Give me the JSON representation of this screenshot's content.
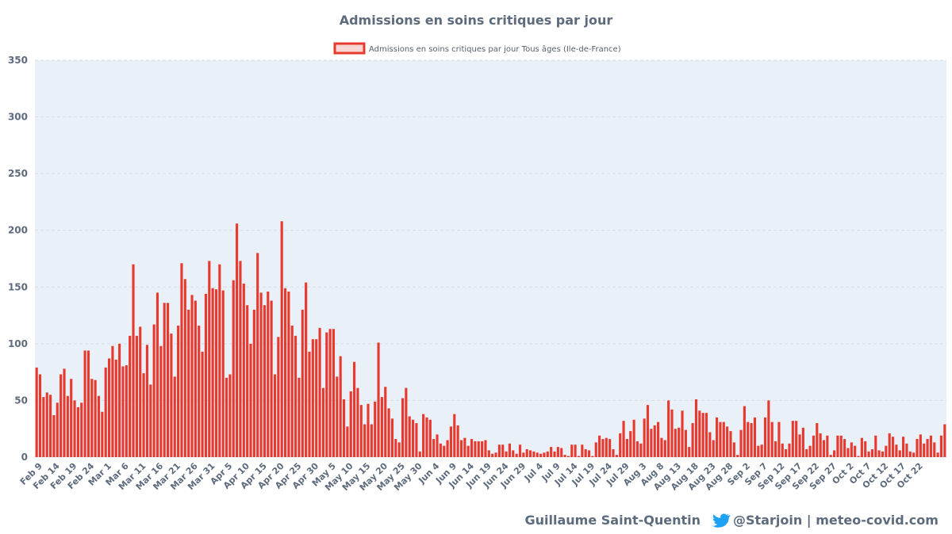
{
  "colors": {
    "bar": "#e8392e",
    "legend_fill": "#f8d7d3",
    "legend_stroke": "#e8392e",
    "plot_background": "#eaf0f8",
    "text": "#5d6b7d",
    "twitter": "#1da1f2"
  },
  "footer": {
    "author": "Guillaume Saint-Quentin",
    "handle": "@Starjoin | meteo-covid.com",
    "icon": "twitter-bird-icon"
  },
  "chart_data": {
    "type": "bar",
    "title": "Admissions en soins critiques par jour",
    "xlabel": "",
    "ylabel": "",
    "ylim": [
      0,
      350
    ],
    "yticks": [
      0,
      50,
      100,
      150,
      200,
      250,
      300,
      350
    ],
    "grid": true,
    "legend_position": "top-center",
    "series": [
      {
        "name": "Admissions en soins critiques par jour Tous âges (Ile-de-France)",
        "values": [
          79,
          73,
          53,
          57,
          55,
          37,
          48,
          73,
          78,
          54,
          69,
          50,
          44,
          48,
          94,
          94,
          69,
          68,
          54,
          40,
          79,
          87,
          98,
          86,
          100,
          80,
          81,
          107,
          170,
          107,
          115,
          74,
          99,
          64,
          117,
          145,
          98,
          136,
          136,
          109,
          71,
          116,
          171,
          157,
          130,
          143,
          138,
          116,
          93,
          144,
          173,
          149,
          148,
          170,
          147,
          70,
          73,
          156,
          206,
          173,
          153,
          134,
          100,
          130,
          180,
          145,
          134,
          146,
          138,
          73,
          106,
          208,
          149,
          146,
          116,
          107,
          70,
          130,
          154,
          93,
          104,
          104,
          114,
          61,
          110,
          113,
          113,
          71,
          89,
          51,
          27,
          58,
          84,
          61,
          46,
          29,
          47,
          29,
          49,
          101,
          53,
          62,
          43,
          34,
          16,
          13,
          52,
          61,
          36,
          33,
          30,
          5,
          38,
          35,
          33,
          16,
          20,
          12,
          10,
          15,
          27,
          38,
          28,
          15,
          17,
          10,
          16,
          14,
          14,
          14,
          15,
          6,
          3,
          4,
          11,
          11,
          5,
          12,
          6,
          3,
          11,
          4,
          7,
          6,
          5,
          4,
          3,
          4,
          5,
          9,
          5,
          9,
          8,
          2,
          1,
          11,
          11,
          1,
          11,
          7,
          6,
          1,
          13,
          19,
          16,
          17,
          16,
          7,
          2,
          21,
          32,
          16,
          23,
          33,
          14,
          12,
          34,
          46,
          25,
          28,
          31,
          17,
          15,
          50,
          42,
          25,
          26,
          41,
          24,
          9,
          30,
          51,
          41,
          39,
          39,
          22,
          15,
          35,
          31,
          31,
          27,
          23,
          13,
          2,
          24,
          45,
          31,
          30,
          35,
          10,
          11,
          35,
          50,
          31,
          14,
          31,
          12,
          7,
          12,
          32,
          32,
          20,
          26,
          7,
          10,
          19,
          30,
          21,
          15,
          19,
          2,
          6,
          19,
          19,
          16,
          8,
          13,
          10,
          1,
          17,
          14,
          5,
          7,
          19,
          6,
          5,
          10,
          21,
          18,
          11,
          6,
          18,
          12,
          5,
          4,
          16,
          20,
          12,
          16,
          19,
          13,
          4,
          19,
          29
        ]
      }
    ],
    "x_tick_labels": [
      "Feb 9",
      "Feb 14",
      "Feb 19",
      "Feb 24",
      "Mar 1",
      "Mar 6",
      "Mar 11",
      "Mar 16",
      "Mar 21",
      "Mar 26",
      "Mar 31",
      "Apr 5",
      "Apr 10",
      "Apr 15",
      "Apr 20",
      "Apr 25",
      "Apr 30",
      "May 5",
      "May 10",
      "May 15",
      "May 20",
      "May 25",
      "May 30",
      "Jun 4",
      "Jun 9",
      "Jun 14",
      "Jun 19",
      "Jun 24",
      "Jun 29",
      "Jul 4",
      "Jul 9",
      "Jul 14",
      "Jul 19",
      "Jul 24",
      "Jul 29",
      "Aug 3",
      "Aug 8",
      "Aug 13",
      "Aug 18",
      "Aug 23",
      "Aug 28",
      "Sep 2",
      "Sep 7",
      "Sep 12",
      "Sep 17",
      "Sep 22",
      "Sep 27",
      "Oct 2",
      "Oct 7",
      "Oct 12",
      "Oct 17",
      "Oct 22"
    ],
    "x_tick_every": 5
  }
}
